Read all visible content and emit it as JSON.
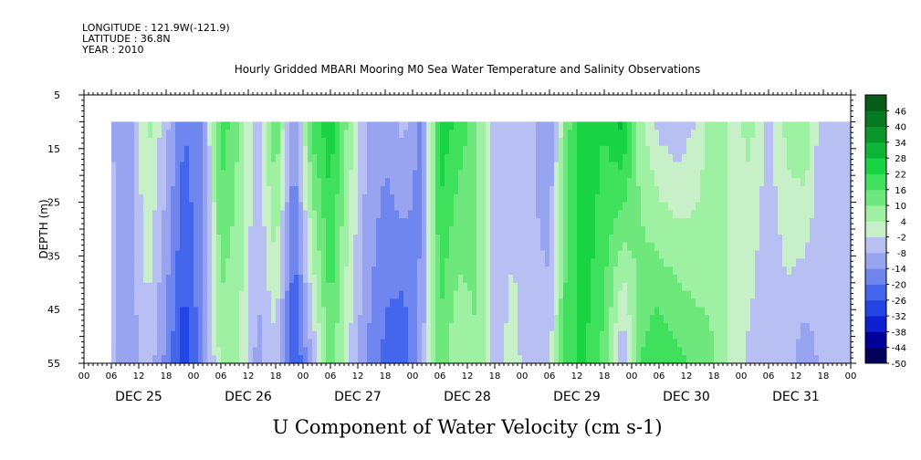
{
  "header": {
    "longitude": "LONGITUDE : 121.9W(-121.9)",
    "latitude": "LATITUDE : 36.8N",
    "year": "YEAR : 2010"
  },
  "chart_data": {
    "type": "heatmap",
    "title": "Hourly Gridded MBARI Mooring M0 Sea Water Temperature and Salinity Observations",
    "xlabel": "U Component of Water Velocity (cm s-1)",
    "ylabel": "DEPTH (m)",
    "ylim": [
      55,
      5
    ],
    "y_ticks": [
      5,
      15,
      25,
      35,
      45,
      55
    ],
    "data_depth_range": [
      10,
      55
    ],
    "x_range_hours": [
      0,
      168
    ],
    "x_hour_ticks": [
      "00",
      "06",
      "12",
      "18",
      "00",
      "06",
      "12",
      "18",
      "00",
      "06",
      "12",
      "18",
      "00",
      "06",
      "12",
      "18",
      "00",
      "06",
      "12",
      "18",
      "00",
      "06",
      "12",
      "18",
      "00",
      "06",
      "12",
      "18",
      "00"
    ],
    "x_day_labels": [
      "DEC 25",
      "DEC 26",
      "DEC 27",
      "DEC 28",
      "DEC 29",
      "DEC 30",
      "DEC 31"
    ],
    "data_start_hour": 6,
    "data_end_hour": 168,
    "colorbar": {
      "labels": [
        "46",
        "40",
        "34",
        "28",
        "22",
        "16",
        "10",
        "4",
        "-2",
        "-8",
        "-14",
        "-20",
        "-26",
        "-32",
        "-38",
        "-44",
        "-50"
      ],
      "min": -50,
      "max": 52,
      "colors_low_to_high": [
        "#00005a",
        "#00009a",
        "#0d1fd1",
        "#2345e6",
        "#4466ec",
        "#6f86ef",
        "#98a4ef",
        "#b8bff2",
        "#c8f0c8",
        "#9ef0a2",
        "#6ee87c",
        "#3ee05c",
        "#18d444",
        "#0cb634",
        "#08982a",
        "#067a20",
        "#045c16"
      ]
    },
    "column_profiles": {
      "x_hours": [
        6,
        10,
        14,
        18,
        22,
        26,
        30,
        34,
        38,
        42,
        46,
        50,
        54,
        58,
        62,
        66,
        70,
        74,
        78,
        82,
        86,
        90,
        94,
        98,
        102,
        106,
        110,
        114,
        118,
        122,
        126,
        130,
        134,
        138,
        142,
        146,
        150,
        154,
        158,
        162,
        166,
        168
      ],
      "surface_u": [
        -8,
        -10,
        6,
        -6,
        -20,
        -14,
        20,
        10,
        -6,
        16,
        -14,
        18,
        26,
        8,
        -8,
        -12,
        -6,
        -18,
        26,
        20,
        12,
        -4,
        -8,
        -6,
        -14,
        14,
        28,
        22,
        30,
        6,
        -4,
        -6,
        -2,
        8,
        2,
        6,
        -4,
        6,
        10,
        -8,
        -4,
        -4
      ],
      "bottom_u": [
        -6,
        -12,
        -4,
        -16,
        -30,
        -16,
        6,
        4,
        -10,
        -4,
        -28,
        -8,
        14,
        -2,
        -14,
        -22,
        -26,
        -10,
        14,
        4,
        10,
        -6,
        2,
        -8,
        -4,
        22,
        22,
        14,
        -10,
        16,
        22,
        18,
        14,
        10,
        2,
        -4,
        -8,
        -6,
        -12,
        -6,
        -8,
        -8
      ]
    }
  }
}
